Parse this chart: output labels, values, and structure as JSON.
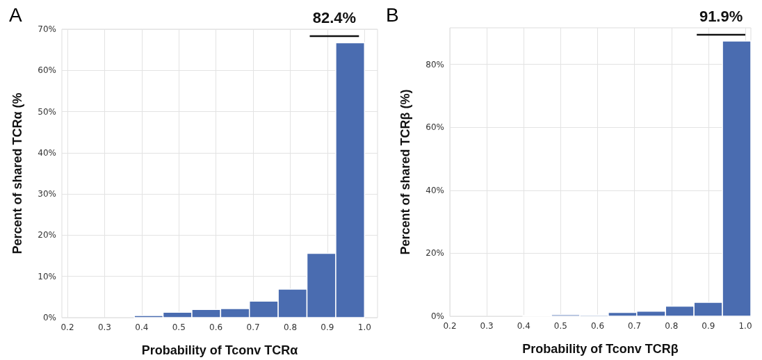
{
  "chart_data": [
    {
      "type": "histogram",
      "title": "A",
      "xlabel": "Probability of Tconv TCRα",
      "ylabel": "Percent of shared TCRα (%",
      "color": "#4a6cb0",
      "bins": [
        0.225,
        0.3025,
        0.38,
        0.4575,
        0.535,
        0.6125,
        0.69,
        0.7675,
        0.845,
        0.9225,
        1.0
      ],
      "values": [
        0,
        0,
        0.5,
        1.3,
        2.0,
        2.2,
        4.0,
        6.9,
        15.6,
        66.7
      ],
      "xlim": [
        0.185,
        1.035
      ],
      "xticks": [
        0.2,
        0.3,
        0.4,
        0.5,
        0.6,
        0.7,
        0.8,
        0.9,
        {
          "value": 1.0,
          "label": "1.0"
        }
      ],
      "ylim": [
        0,
        70
      ],
      "yticks": [
        {
          "value": 0,
          "label": "0%"
        },
        {
          "value": 10,
          "label": "10%"
        },
        {
          "value": 20,
          "label": "20%"
        },
        {
          "value": 30,
          "label": "30%"
        },
        {
          "value": 40,
          "label": "40%"
        },
        {
          "value": 50,
          "label": "50%"
        },
        {
          "value": 60,
          "label": "60%"
        },
        {
          "value": 70,
          "label": "70%"
        }
      ],
      "grid": true,
      "annotations": [
        "82.4%"
      ]
    },
    {
      "type": "histogram",
      "title": "B",
      "xlabel": "Probability of Tconv TCRβ",
      "ylabel": "Percent of shared TCRβ (%)",
      "color": "#4a6cb0",
      "bins": [
        0.398,
        0.475,
        0.552,
        0.629,
        0.706,
        0.784,
        0.861,
        0.938,
        1.015
      ],
      "values": [
        0.2,
        0.5,
        0.4,
        1.2,
        1.6,
        3.2,
        4.4,
        87.4
      ],
      "xlim": [
        0.2,
        1.015
      ],
      "xticks": [
        0.2,
        0.3,
        0.4,
        0.5,
        0.6,
        0.7,
        0.8,
        0.9,
        {
          "value": 1.0,
          "label": "1.0"
        }
      ],
      "ylim": [
        0,
        91.6
      ],
      "yticks": [
        {
          "value": 0,
          "label": "0%"
        },
        {
          "value": 20,
          "label": "20%"
        },
        {
          "value": 40,
          "label": "40%"
        },
        {
          "value": 60,
          "label": "60%"
        },
        {
          "value": 80,
          "label": "80%"
        }
      ],
      "grid": true,
      "annotations": [
        "91.9%"
      ]
    }
  ]
}
